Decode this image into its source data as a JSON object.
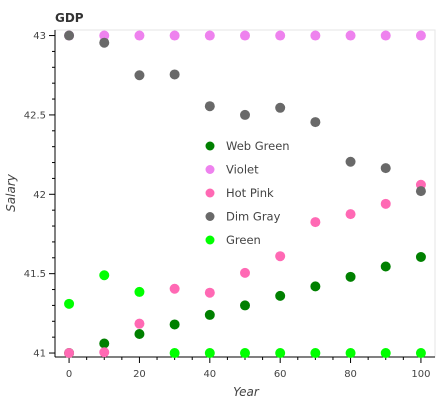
{
  "chart_data": {
    "type": "scatter",
    "title": "GDP",
    "xlabel": "Year",
    "ylabel": "Salary",
    "xlim": [
      -4,
      104
    ],
    "ylim": [
      40.975,
      43.035
    ],
    "xticks": [
      0,
      20,
      40,
      60,
      80,
      100
    ],
    "yticks": [
      41,
      41.5,
      42,
      42.5,
      43
    ],
    "ytick_labels": [
      "41",
      "41.5",
      "42",
      "42.5",
      "43"
    ],
    "grid": false,
    "legend_position": "center-right",
    "x": [
      0,
      10,
      20,
      30,
      40,
      50,
      60,
      70,
      80,
      90,
      100
    ],
    "series": [
      {
        "name": "Web Green",
        "color": "#008000",
        "values": [
          41.0,
          41.06,
          41.12,
          41.18,
          41.24,
          41.3,
          41.36,
          41.42,
          41.48,
          41.545,
          41.605
        ]
      },
      {
        "name": "Violet",
        "color": "#ee82ee",
        "values": [
          43.0,
          43.0,
          43.0,
          43.0,
          43.0,
          43.0,
          43.0,
          43.0,
          43.0,
          43.0,
          43.0
        ]
      },
      {
        "name": "Hot Pink",
        "color": "#ff69b4",
        "values": [
          41.0,
          41.005,
          41.185,
          41.405,
          41.38,
          41.505,
          41.61,
          41.825,
          41.875,
          41.94,
          42.06
        ]
      },
      {
        "name": "Dim Gray",
        "color": "#696969",
        "values": [
          43.0,
          42.955,
          42.75,
          42.755,
          42.555,
          42.5,
          42.545,
          42.455,
          42.205,
          42.165,
          42.02
        ]
      },
      {
        "name": "Green",
        "color": "#00ff00",
        "values": [
          41.31,
          41.49,
          41.385,
          41.0,
          41.0,
          41.0,
          41.0,
          41.0,
          41.0,
          41.0,
          41.0
        ]
      }
    ]
  }
}
